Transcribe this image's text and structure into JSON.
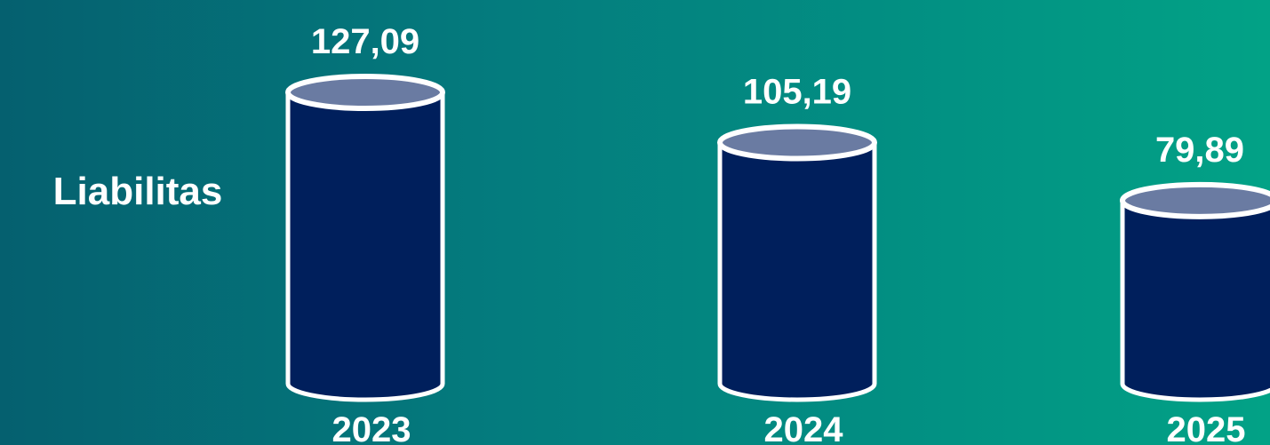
{
  "chart_data": {
    "type": "bar",
    "title": "",
    "ylabel": "Liabilitas",
    "categories": [
      "2023",
      "2024",
      "2025"
    ],
    "value_labels": [
      "127,09",
      "105,19",
      "79,89"
    ],
    "values": [
      127.09,
      105.19,
      79.89
    ],
    "ylim": [
      0,
      127.09
    ],
    "grid": false,
    "colors": {
      "body": "#001f5c",
      "top": "#6a7ba2",
      "outline": "#ffffff",
      "text": "#ffffff",
      "background_start": "#05606f",
      "background_end": "#02a286"
    }
  }
}
